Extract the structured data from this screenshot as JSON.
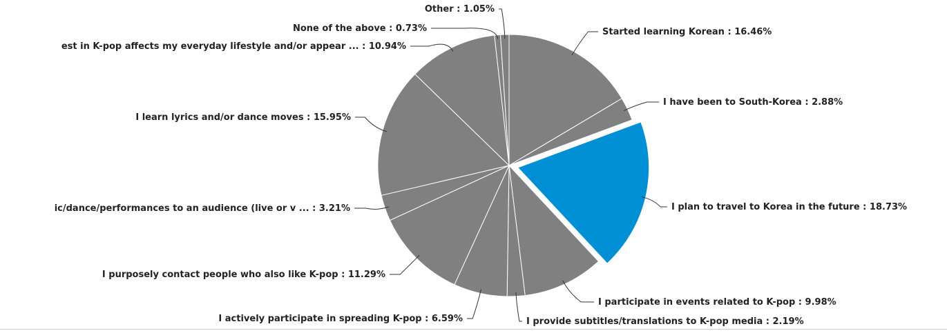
{
  "chart_data": {
    "type": "pie",
    "categories": [
      "Started learning Korean",
      "I have been to South-Korea",
      "I plan to travel to Korea in the future",
      "I participate in events related to K-pop",
      "I provide subtitles/translations to K-pop media",
      "I actively participate in spreading K-pop",
      "I purposely contact people who also like K-pop",
      "ic/dance/performances to an audience (live or v ...",
      "I learn lyrics and/or dance moves",
      "est in K-pop affects my everyday lifestyle and/or appear ...",
      "None of the above",
      "Other"
    ],
    "values": [
      16.46,
      2.88,
      18.73,
      9.98,
      2.19,
      6.59,
      11.29,
      3.21,
      15.95,
      10.94,
      0.73,
      1.05
    ],
    "value_labels": [
      "16.46%",
      "2.88%",
      "18.73%",
      "9.98%",
      "2.19%",
      "6.59%",
      "11.29%",
      "3.21%",
      "15.95%",
      "10.94%",
      "0.73%",
      "1.05%"
    ],
    "label_separator": " : ",
    "colors": [
      "#808080",
      "#808080",
      "#008fd5",
      "#808080",
      "#808080",
      "#808080",
      "#808080",
      "#808080",
      "#808080",
      "#808080",
      "#808080",
      "#808080"
    ],
    "exploded": [
      2
    ]
  }
}
